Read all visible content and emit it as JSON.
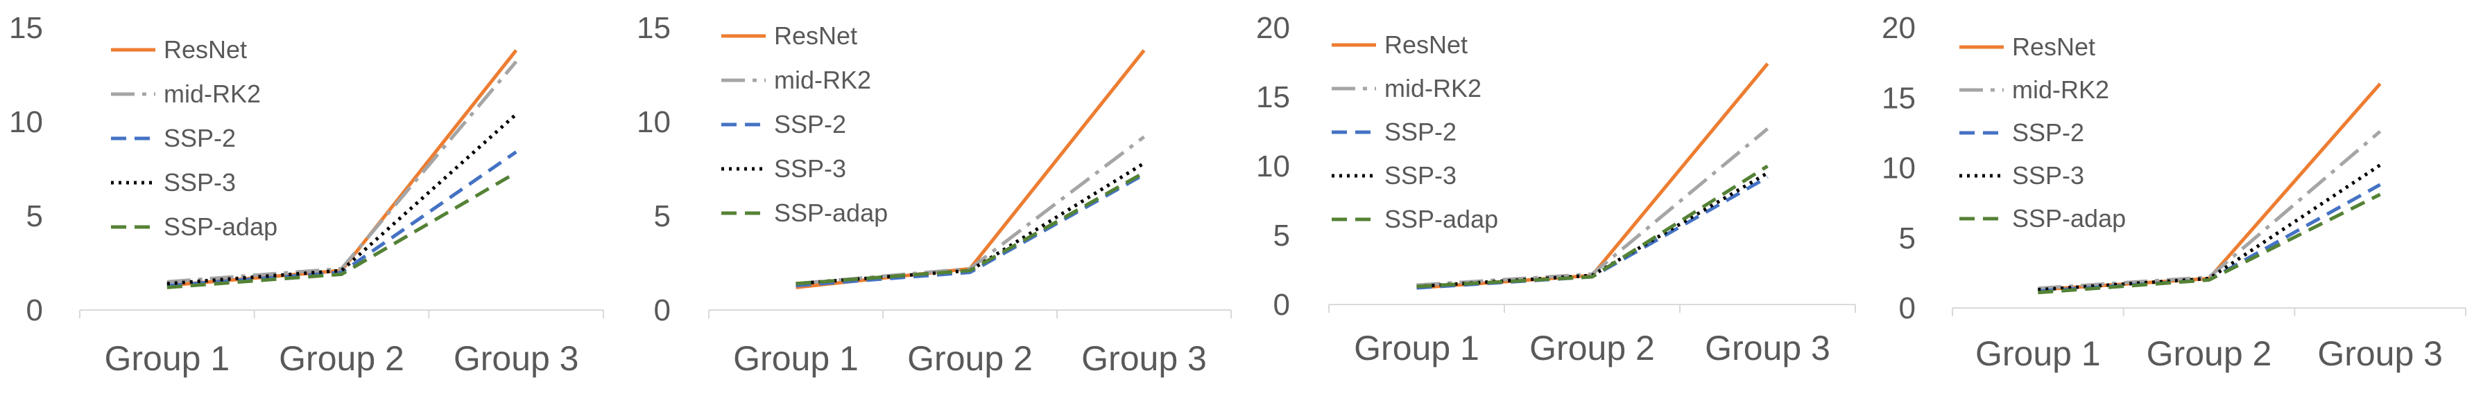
{
  "series_styles": {
    "ResNet": {
      "color": "#ED7D31",
      "dash": "solid"
    },
    "mid-RK2": {
      "color": "#A5A5A5",
      "dash": "dashdot"
    },
    "SSP-2": {
      "color": "#4472C4",
      "dash": "dash"
    },
    "SSP-3": {
      "color": "#000000",
      "dash": "dot"
    },
    "SSP-adap": {
      "color": "#548235",
      "dash": "dash"
    }
  },
  "chart_data": [
    {
      "type": "line",
      "title": "",
      "categories": [
        "Group 1",
        "Group 2",
        "Group 3"
      ],
      "ylim": [
        0,
        15
      ],
      "yticks": [
        "0",
        "5",
        "10",
        "15"
      ],
      "legend_position": "top-left",
      "grid": false,
      "series": [
        {
          "name": "ResNet",
          "values": [
            1.3,
            2.1,
            13.8
          ]
        },
        {
          "name": "mid-RK2",
          "values": [
            1.5,
            2.2,
            13.2
          ]
        },
        {
          "name": "SSP-2",
          "values": [
            1.3,
            2.0,
            8.4
          ]
        },
        {
          "name": "SSP-3",
          "values": [
            1.4,
            2.1,
            10.4
          ]
        },
        {
          "name": "SSP-adap",
          "values": [
            1.2,
            1.9,
            7.3
          ]
        }
      ]
    },
    {
      "type": "line",
      "title": "",
      "categories": [
        "Group 1",
        "Group 2",
        "Group 3"
      ],
      "ylim": [
        0,
        15
      ],
      "yticks": [
        "0",
        "5",
        "10",
        "15"
      ],
      "legend_position": "top-left",
      "grid": false,
      "series": [
        {
          "name": "ResNet",
          "values": [
            1.2,
            2.2,
            13.8
          ]
        },
        {
          "name": "mid-RK2",
          "values": [
            1.4,
            2.2,
            9.2
          ]
        },
        {
          "name": "SSP-2",
          "values": [
            1.3,
            2.0,
            7.2
          ]
        },
        {
          "name": "SSP-3",
          "values": [
            1.4,
            2.1,
            7.8
          ]
        },
        {
          "name": "SSP-adap",
          "values": [
            1.4,
            2.1,
            7.3
          ]
        }
      ]
    },
    {
      "type": "line",
      "title": "",
      "categories": [
        "Group 1",
        "Group 2",
        "Group 3"
      ],
      "ylim": [
        0,
        20
      ],
      "yticks": [
        "0",
        "5",
        "10",
        "15",
        "20"
      ],
      "legend_position": "top-left",
      "grid": false,
      "series": [
        {
          "name": "ResNet",
          "values": [
            1.2,
            2.1,
            17.4
          ]
        },
        {
          "name": "mid-RK2",
          "values": [
            1.4,
            2.2,
            12.7
          ]
        },
        {
          "name": "SSP-2",
          "values": [
            1.2,
            2.0,
            9.2
          ]
        },
        {
          "name": "SSP-3",
          "values": [
            1.3,
            2.1,
            9.5
          ]
        },
        {
          "name": "SSP-adap",
          "values": [
            1.3,
            2.0,
            10.0
          ]
        }
      ]
    },
    {
      "type": "line",
      "title": "",
      "categories": [
        "Group 1",
        "Group 2",
        "Group 3"
      ],
      "ylim": [
        0,
        20
      ],
      "yticks": [
        "0",
        "5",
        "10",
        "15",
        "20"
      ],
      "legend_position": "top-left",
      "grid": false,
      "series": [
        {
          "name": "ResNet",
          "values": [
            1.3,
            2.1,
            16.0
          ]
        },
        {
          "name": "mid-RK2",
          "values": [
            1.4,
            2.2,
            12.6
          ]
        },
        {
          "name": "SSP-2",
          "values": [
            1.2,
            2.0,
            8.8
          ]
        },
        {
          "name": "SSP-3",
          "values": [
            1.3,
            2.1,
            10.2
          ]
        },
        {
          "name": "SSP-adap",
          "values": [
            1.1,
            2.0,
            8.1
          ]
        }
      ]
    }
  ]
}
